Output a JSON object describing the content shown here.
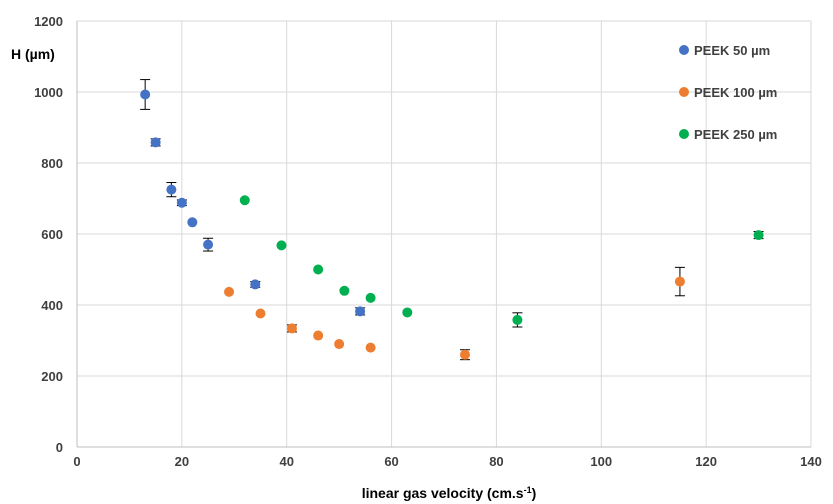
{
  "chart_data": {
    "type": "scatter",
    "title": "",
    "xlabel": "linear gas velocity (cm.s",
    "xlabel_sup": "-1",
    "xlabel_end": ")",
    "ylabel": "H (µm)",
    "xlim": [
      0,
      140
    ],
    "ylim": [
      0,
      1200
    ],
    "x_ticks": [
      0,
      20,
      40,
      60,
      80,
      100,
      120,
      140
    ],
    "y_ticks": [
      0,
      200,
      400,
      600,
      800,
      1000,
      1200
    ],
    "grid": "vertical and horizontal major gridlines",
    "legend": "top-right",
    "series": [
      {
        "name": "PEEK 50 µm",
        "color": "#4472c4",
        "points": [
          {
            "x": 13,
            "y": 993,
            "err": 42
          },
          {
            "x": 15,
            "y": 858,
            "err": 10
          },
          {
            "x": 18,
            "y": 725,
            "err": 20
          },
          {
            "x": 20,
            "y": 688,
            "err": 8
          },
          {
            "x": 22,
            "y": 633,
            "err": 0
          },
          {
            "x": 25,
            "y": 570,
            "err": 18
          },
          {
            "x": 34,
            "y": 458,
            "err": 8
          },
          {
            "x": 54,
            "y": 382,
            "err": 10
          }
        ]
      },
      {
        "name": "PEEK 100 µm",
        "color": "#ed7d31",
        "points": [
          {
            "x": 29,
            "y": 437,
            "err": 0
          },
          {
            "x": 35,
            "y": 376,
            "err": 0
          },
          {
            "x": 41,
            "y": 334,
            "err": 10
          },
          {
            "x": 46,
            "y": 314,
            "err": 0
          },
          {
            "x": 50,
            "y": 290,
            "err": 0
          },
          {
            "x": 56,
            "y": 280,
            "err": 0
          },
          {
            "x": 74,
            "y": 260,
            "err": 14
          },
          {
            "x": 115,
            "y": 466,
            "err": 40
          }
        ]
      },
      {
        "name": "PEEK 250 µm",
        "color": "#00b050",
        "points": [
          {
            "x": 32,
            "y": 695,
            "err": 0
          },
          {
            "x": 39,
            "y": 568,
            "err": 0
          },
          {
            "x": 46,
            "y": 500,
            "err": 0
          },
          {
            "x": 51,
            "y": 440,
            "err": 0
          },
          {
            "x": 56,
            "y": 420,
            "err": 0
          },
          {
            "x": 63,
            "y": 379,
            "err": 0
          },
          {
            "x": 84,
            "y": 358,
            "err": 20
          },
          {
            "x": 130,
            "y": 597,
            "err": 10
          }
        ]
      }
    ]
  }
}
